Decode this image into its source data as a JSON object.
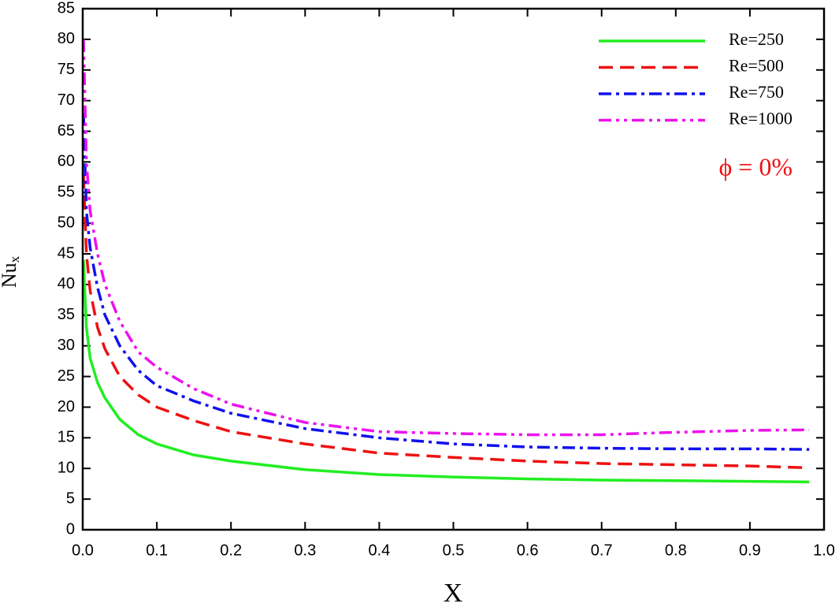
{
  "chart_data": {
    "type": "line",
    "xlabel": "X",
    "ylabel": "Nu",
    "ylabel_subscript": "x",
    "annotation": "ϕ = 0%",
    "annotation_color": "#ee1111",
    "x": [
      0.001,
      0.005,
      0.01,
      0.02,
      0.03,
      0.05,
      0.075,
      0.1,
      0.15,
      0.2,
      0.3,
      0.4,
      0.5,
      0.6,
      0.7,
      0.8,
      0.9,
      0.98
    ],
    "series": [
      {
        "name": "Re=250",
        "color": "#22ee22",
        "dash": "solid",
        "values": [
          44,
          33,
          28,
          24,
          21.5,
          18,
          15.5,
          14,
          12.2,
          11.2,
          9.8,
          9.0,
          8.6,
          8.3,
          8.1,
          8.0,
          7.9,
          7.8
        ]
      },
      {
        "name": "Re=500",
        "color": "#ee1111",
        "dash": "dashed",
        "values": [
          58,
          45,
          39,
          33,
          29.5,
          25,
          22,
          20,
          17.8,
          16,
          14,
          12.5,
          11.8,
          11.2,
          10.8,
          10.6,
          10.4,
          10.1
        ]
      },
      {
        "name": "Re=750",
        "color": "#1111ee",
        "dash": "dashdot",
        "values": [
          68,
          52,
          46,
          39.5,
          35,
          30,
          26,
          23.5,
          21,
          19,
          16.5,
          15,
          14,
          13.5,
          13.3,
          13.2,
          13.2,
          13.1
        ]
      },
      {
        "name": "Re=1000",
        "color": "#ee11ee",
        "dash": "dashdotdot",
        "values": [
          80,
          60,
          52,
          45,
          40,
          34,
          29,
          26.5,
          23,
          20.5,
          17.5,
          16,
          15.7,
          15.5,
          15.5,
          15.9,
          16.2,
          16.3
        ]
      }
    ],
    "xlim": [
      0,
      1
    ],
    "xticks": [
      {
        "value": 0,
        "label": "0.0"
      },
      0.1,
      0.2,
      0.3,
      0.4,
      0.5,
      0.6,
      0.7,
      0.8,
      0.9,
      {
        "value": 1,
        "label": "1.0"
      }
    ],
    "ylim": [
      0,
      85
    ],
    "yticks": [
      0,
      5,
      10,
      15,
      20,
      25,
      30,
      35,
      40,
      45,
      50,
      55,
      60,
      65,
      70,
      75,
      80,
      85
    ],
    "legend": "upper right",
    "grid": false
  }
}
